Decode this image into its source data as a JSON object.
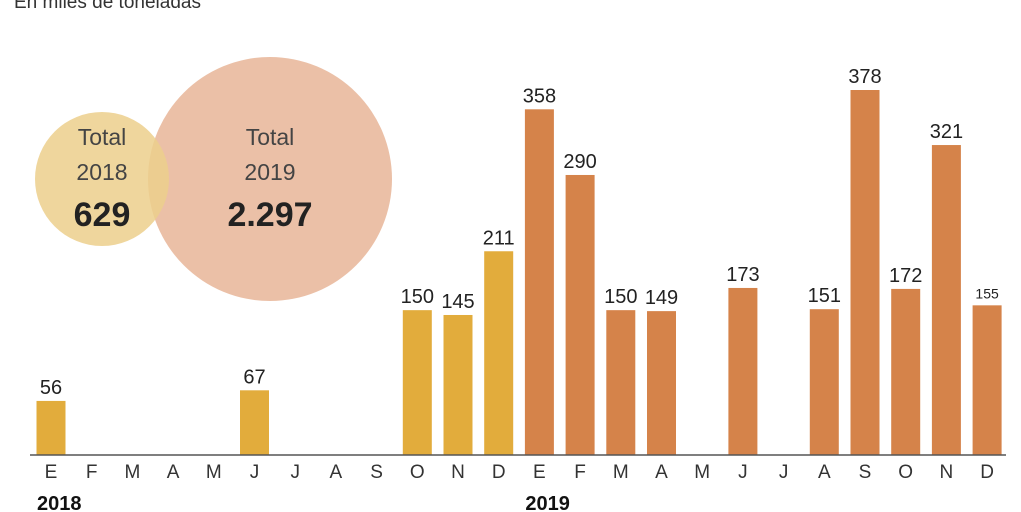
{
  "subtitle": "En miles de toneladas",
  "circles": [
    {
      "label": "Total",
      "year": "2018",
      "value": "629",
      "color": "#eccf8c",
      "opacity": 0.85
    },
    {
      "label": "Total",
      "year": "2019",
      "value": "2.297",
      "color": "#e2a582",
      "opacity": 0.7
    }
  ],
  "chart_data": {
    "type": "bar",
    "years": [
      {
        "label": "2018",
        "color": "#e2ac3c",
        "months": [
          "E",
          "F",
          "M",
          "A",
          "M",
          "J",
          "J",
          "A",
          "S",
          "O",
          "N",
          "D"
        ],
        "values": [
          56,
          null,
          null,
          null,
          null,
          67,
          null,
          null,
          null,
          150,
          145,
          211
        ]
      },
      {
        "label": "2019",
        "color": "#d5834a",
        "months": [
          "E",
          "F",
          "M",
          "A",
          "M",
          "J",
          "J",
          "A",
          "S",
          "O",
          "N",
          "D"
        ],
        "values": [
          358,
          290,
          150,
          149,
          null,
          173,
          null,
          151,
          378,
          172,
          321,
          155
        ]
      }
    ],
    "ylim": [
      0,
      400
    ],
    "grid": false,
    "legend": "none"
  }
}
